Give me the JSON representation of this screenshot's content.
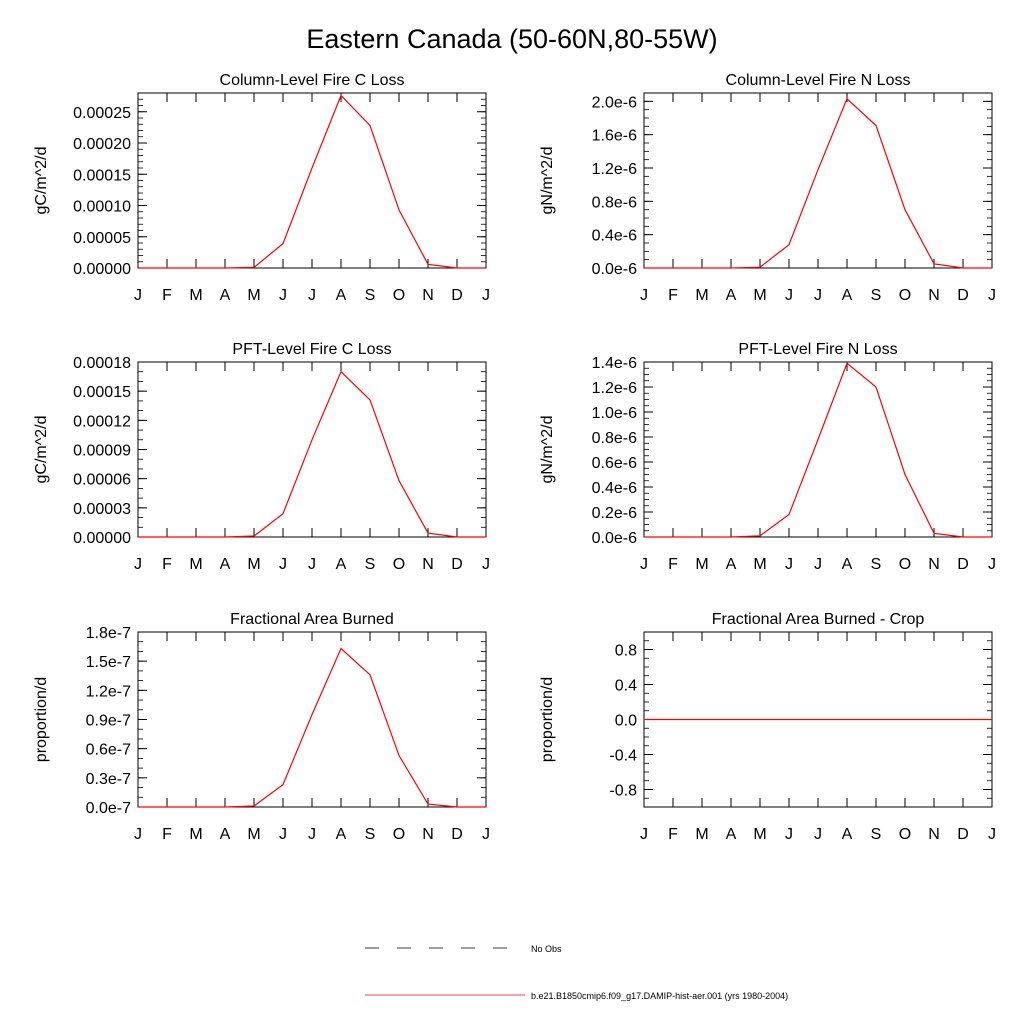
{
  "figure": {
    "title": "Eastern Canada (50-60N,80-55W)",
    "month_labels": [
      "J",
      "F",
      "M",
      "A",
      "M",
      "J",
      "J",
      "A",
      "S",
      "O",
      "N",
      "D",
      "J"
    ],
    "series_color": "#ff0000",
    "legend": {
      "no_obs_label": "No Obs",
      "model_label": "b.e21.B1850cmip6.f09_g17.DAMIP-hist-aer.001 (yrs 1980-2004)"
    }
  },
  "chart_data": [
    {
      "type": "line",
      "title": "Column-Level Fire C Loss",
      "ylabel": "gC/m^2/d",
      "ylim": [
        0,
        0.00028
      ],
      "yticks": [
        0,
        5e-05,
        0.0001,
        0.00015,
        0.0002,
        0.00025
      ],
      "ytick_labels": [
        "0.00000",
        "0.00005",
        "0.00010",
        "0.00015",
        "0.00020",
        "0.00025"
      ],
      "yminor_step": 1e-05,
      "values": [
        0,
        0,
        0,
        0,
        1e-06,
        3.9e-05,
        0.00016,
        0.000276,
        0.000228,
        9.3e-05,
        6e-06,
        0,
        0
      ]
    },
    {
      "type": "line",
      "title": "Column-Level Fire N Loss",
      "ylabel": "gN/m^2/d",
      "ylim": [
        0,
        2.1e-06
      ],
      "yticks": [
        0,
        4e-07,
        8e-07,
        1.2e-06,
        1.6e-06,
        2e-06
      ],
      "ytick_labels": [
        "0.0e-6",
        "0.4e-6",
        "0.8e-6",
        "1.2e-6",
        "1.6e-6",
        "2.0e-6"
      ],
      "yminor_step": 1e-07,
      "values": [
        0,
        0,
        0,
        0,
        1e-08,
        2.8e-07,
        1.18e-06,
        2.03e-06,
        1.71e-06,
        7e-07,
        5e-08,
        0,
        0
      ]
    },
    {
      "type": "line",
      "title": "PFT-Level Fire C Loss",
      "ylabel": "gC/m^2/d",
      "ylim": [
        0,
        0.00018
      ],
      "yticks": [
        0,
        3e-05,
        6e-05,
        9e-05,
        0.00012,
        0.00015,
        0.00018
      ],
      "ytick_labels": [
        "0.00000",
        "0.00003",
        "0.00006",
        "0.00009",
        "0.00012",
        "0.00015",
        "0.00018"
      ],
      "yminor_step": 1e-05,
      "values": [
        0,
        0,
        0,
        0,
        1e-06,
        2.4e-05,
        0.0001,
        0.00017,
        0.000141,
        5.8e-05,
        4e-06,
        0,
        0
      ]
    },
    {
      "type": "line",
      "title": "PFT-Level Fire N Loss",
      "ylabel": "gN/m^2/d",
      "ylim": [
        0,
        1.4e-06
      ],
      "yticks": [
        0,
        2e-07,
        4e-07,
        6e-07,
        8e-07,
        1e-06,
        1.2e-06,
        1.4e-06
      ],
      "ytick_labels": [
        "0.0e-6",
        "0.2e-6",
        "0.4e-6",
        "0.6e-6",
        "0.8e-6",
        "1.0e-6",
        "1.2e-6",
        "1.4e-6"
      ],
      "yminor_step": 5e-08,
      "values": [
        0,
        0,
        0,
        0,
        1e-08,
        1.8e-07,
        7.8e-07,
        1.39e-06,
        1.2e-06,
        5e-07,
        3e-08,
        0,
        0
      ]
    },
    {
      "type": "line",
      "title": "Fractional Area Burned",
      "ylabel": "proportion/d",
      "ylim": [
        0,
        1.8e-07
      ],
      "yticks": [
        0,
        3e-08,
        6e-08,
        9e-08,
        1.2e-07,
        1.5e-07,
        1.8e-07
      ],
      "ytick_labels": [
        "0.0e-7",
        "0.3e-7",
        "0.6e-7",
        "0.9e-7",
        "1.2e-7",
        "1.5e-7",
        "1.8e-7"
      ],
      "yminor_step": 1e-08,
      "values": [
        0,
        0,
        0,
        0,
        1e-09,
        2.3e-08,
        9.5e-08,
        1.63e-07,
        1.36e-07,
        5.3e-08,
        3e-09,
        0,
        0
      ]
    },
    {
      "type": "line",
      "title": "Fractional Area Burned - Crop",
      "ylabel": "proportion/d",
      "ylim": [
        -1,
        1
      ],
      "yticks": [
        -0.8,
        -0.4,
        0,
        0.4,
        0.8
      ],
      "ytick_labels": [
        "-0.8",
        "-0.4",
        "0.0",
        "0.4",
        "0.8"
      ],
      "yminor_step": 0.1,
      "values": [
        0,
        0,
        0,
        0,
        0,
        0,
        0,
        0,
        0,
        0,
        0,
        0,
        0
      ]
    }
  ]
}
